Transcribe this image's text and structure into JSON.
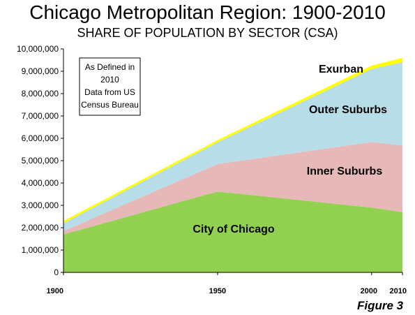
{
  "chart_data": {
    "type": "area",
    "stacked": true,
    "title": "Chicago Metropolitan Region: 1900-2010",
    "subtitle": "SHARE OF POPULATION BY SECTOR (CSA)",
    "x": [
      1900,
      1950,
      2000,
      2010
    ],
    "x_tick_labels": [
      "1900",
      "1950",
      "2000",
      "2010"
    ],
    "y_tick_labels": [
      "0",
      "1,000,000",
      "2,000,000",
      "3,000,000",
      "4,000,000",
      "5,000,000",
      "6,000,000",
      "7,000,000",
      "8,000,000",
      "9,000,000",
      "10,000,000"
    ],
    "ylim": [
      0,
      10000000
    ],
    "xlim": [
      1900,
      2010
    ],
    "series": [
      {
        "name": "City of Chicago",
        "values": [
          1700000,
          3620000,
          2900000,
          2700000
        ],
        "color": "#92d050"
      },
      {
        "name": "Inner Suburbs",
        "values": [
          150000,
          1230000,
          2930000,
          2980000
        ],
        "color": "#e6b9b8"
      },
      {
        "name": "Outer Suburbs",
        "values": [
          350000,
          970000,
          3270000,
          3720000
        ],
        "color": "#b7dde8"
      },
      {
        "name": "Exurban",
        "values": [
          100000,
          100000,
          150000,
          200000
        ],
        "color": "#ffff00"
      }
    ],
    "note": [
      "As Defined in",
      "2010",
      "Data from US",
      "Census Bureau"
    ],
    "figure_label": "Figure 3"
  }
}
